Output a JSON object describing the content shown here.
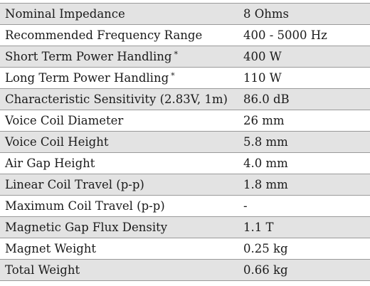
{
  "specs": {
    "rows": [
      {
        "parameter": "Nominal Impedance",
        "value": "8 Ohms",
        "note": ""
      },
      {
        "parameter": "Recommended Frequency Range",
        "value": "400 - 5000 Hz",
        "note": ""
      },
      {
        "parameter": "Short Term Power Handling",
        "value": "400 W",
        "note": "*"
      },
      {
        "parameter": "Long Term Power Handling",
        "value": "110 W",
        "note": "*"
      },
      {
        "parameter": "Characteristic Sensitivity (2.83V, 1m)",
        "value": "86.0 dB",
        "note": ""
      },
      {
        "parameter": "Voice Coil Diameter",
        "value": "26 mm",
        "note": ""
      },
      {
        "parameter": "Voice Coil Height",
        "value": "5.8 mm",
        "note": ""
      },
      {
        "parameter": "Air Gap Height",
        "value": "4.0 mm",
        "note": ""
      },
      {
        "parameter": "Linear Coil Travel (p-p)",
        "value": "1.8 mm",
        "note": ""
      },
      {
        "parameter": "Maximum Coil Travel (p-p)",
        "value": "-",
        "note": ""
      },
      {
        "parameter": "Magnetic Gap Flux Density",
        "value": "1.1 T",
        "note": ""
      },
      {
        "parameter": "Magnet Weight",
        "value": "0.25 kg",
        "note": ""
      },
      {
        "parameter": "Total Weight",
        "value": "0.66 kg",
        "note": ""
      }
    ]
  },
  "style": {
    "shade_color": "#e3e3e3",
    "border_color": "#9a9a9a",
    "text_color": "#1a1a1a"
  }
}
